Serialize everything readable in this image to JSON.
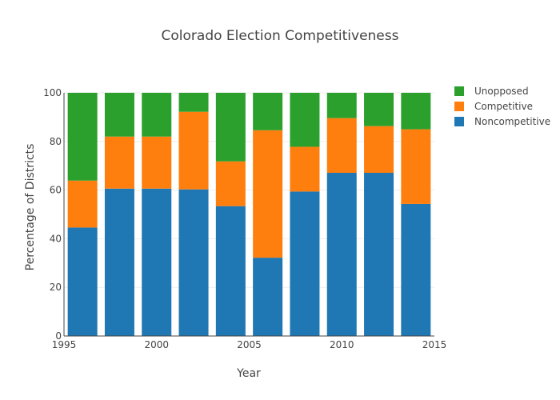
{
  "chart_data": {
    "type": "bar",
    "stacked": true,
    "title": "Colorado Election Competitiveness",
    "xlabel": "Year",
    "ylabel": "Percentage of Districts",
    "x": [
      1996,
      1998,
      2000,
      2002,
      2004,
      2006,
      2008,
      2010,
      2012,
      2014
    ],
    "xlim": [
      1995,
      2015
    ],
    "xticks": [
      "1995",
      "2000",
      "2005",
      "2010",
      "2015"
    ],
    "ylim": [
      0,
      100
    ],
    "yticks": [
      "0",
      "20",
      "40",
      "60",
      "80",
      "100"
    ],
    "grid": true,
    "legend_position": "top-right",
    "series": [
      {
        "name": "Noncompetitive",
        "color": "#1f77b4",
        "values": [
          44.6,
          60.6,
          60.6,
          60.3,
          53.4,
          32.2,
          59.4,
          67.1,
          67.1,
          54.3
        ]
      },
      {
        "name": "Competitive",
        "color": "#ff7f0e",
        "values": [
          19.3,
          21.4,
          21.4,
          31.9,
          18.4,
          52.4,
          18.4,
          22.5,
          19.2,
          30.7
        ]
      },
      {
        "name": "Unopposed",
        "color": "#2ca02c",
        "values": [
          36.1,
          18.0,
          18.0,
          7.8,
          28.2,
          15.4,
          22.2,
          10.4,
          13.7,
          15.0
        ]
      }
    ]
  }
}
